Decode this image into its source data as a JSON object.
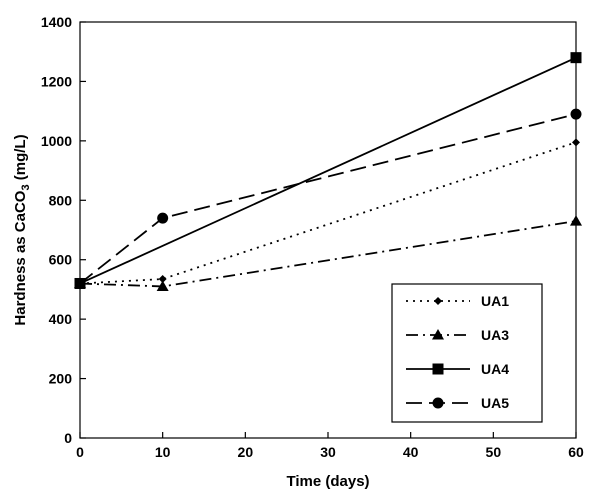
{
  "chart_data": {
    "type": "line",
    "xlabel": "Time (days)",
    "ylabel_prefix": "Hardness as CaCO",
    "ylabel_sub": "3",
    "ylabel_suffix": " (mg/L)",
    "xlim": [
      0,
      60
    ],
    "ylim": [
      0,
      1400
    ],
    "xticks": [
      "0",
      "10",
      "20",
      "30",
      "40",
      "50",
      "60"
    ],
    "yticks": [
      "0",
      "200",
      "400",
      "600",
      "800",
      "1000",
      "1200",
      "1400"
    ],
    "grid": false,
    "legend_position": "bottom-right",
    "series": [
      {
        "name": "UA1",
        "marker": "diamond",
        "dash": "2,5",
        "color": "#000000",
        "x": [
          0,
          10,
          60
        ],
        "y": [
          520,
          535,
          995
        ]
      },
      {
        "name": "UA3",
        "marker": "triangle",
        "dash": "12,5,2,5",
        "color": "#000000",
        "x": [
          0,
          10,
          60
        ],
        "y": [
          520,
          510,
          730
        ]
      },
      {
        "name": "UA4",
        "marker": "square",
        "dash": "",
        "color": "#000000",
        "x": [
          0,
          60
        ],
        "y": [
          520,
          1280
        ]
      },
      {
        "name": "UA5",
        "marker": "circle",
        "dash": "16,7",
        "color": "#000000",
        "x": [
          0,
          10,
          60
        ],
        "y": [
          520,
          740,
          1090
        ]
      }
    ]
  }
}
